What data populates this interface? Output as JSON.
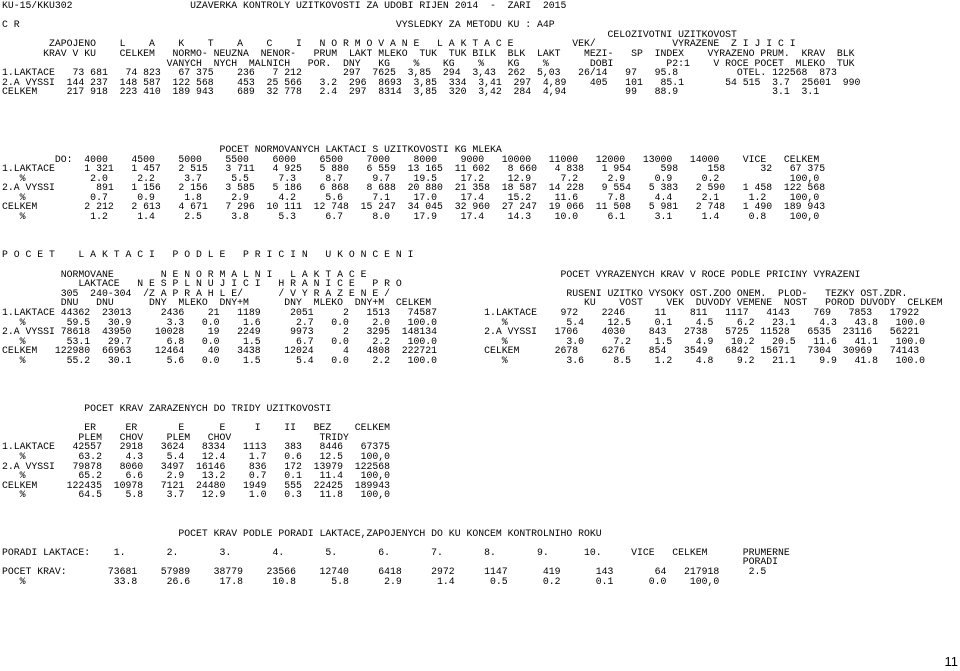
{
  "report": {
    "lines": [
      "KU-15/KKU302                    UZAVERKA KONTROLY UZITKOVOSTI ZA UDOBI RIJEN 2014  -  ZARI  2015",
      "",
      "C R                                                                VYSLEDKY ZA METODU KU : A4P",
      "                                                                                                       CELOZIVOTNI UZITKOVOST",
      "        ZAPOJENO    L    A    K    T    A    C    I   N O R M O V A N E   L A K T A C E          VEK/             VYRAZENE  Z I J I C I",
      "       KRAV V KU    CELKEM   NORMO- NEUZNA  NENOR-   PRUM  LAKT MLEKO  TUK  TUK BILK  BLK  LAKT    MEZI-   SP  INDEX    VYRAZENO PRUM.  KRAV  BLK",
      "                            VANYCH  NYCH  MALNICH   POR.  DNY   KG    %    KG    %    KG    %       DOBI         P2:1    V ROCE POCET  MLEKO  TUK",
      "1.LAKTACE   73 681   74 823   67 375    236   7 212       297  7625  3,85  294  3,43  262  5,03   26/14   97   95.8          OTEL. 122568  873",
      "2.A VYSSI  144 237  148 587  122 568    453  25 566   3.2  296  8693  3,85  334  3,41  297  4,89    405   101   85.1       54 515  3.7  25601  990",
      "CELKEM     217 918  223 410  189 943    689  32 778   2.4  297  8314  3,85  320  3,42  284  4,94          99   88.9                3.1  3.1",
      "",
      "",
      "",
      "",
      "",
      "                                     POCET NORMOVANYCH LAKTACI S UZITKOVOSTI KG MLEKA",
      "         DO:  4000    4500    5000    5500    6000    6500    7000    8000    9000   10000   11000   12000   13000   14000    VICE   CELKEM",
      "1.LAKTACE     1 321   1 457   2 515   3 711   4 925   5 880   6 559  13 165  11 602   8 660   4 838   1 954     598     158      32   67 375",
      "   %           2.0     2.2     3.7     5.5     7.3     8.7     9.7    19.5    17.2    12.9     7.2     2.9     0.9     0.2            100,0",
      "2.A VYSSI       891   1 156   2 156   3 585   5 186   6 868   8 688  20 880  21 358  18 587  14 228   9 554   5 383   2 590   1 458  122 568",
      "   %           0.7     0.9     1.8     2.9     4.2     5.6     7.1    17.0    17.4    15.2    11.6     7.8     4.4     2.1     1.2    100,0",
      "CELKEM        2 212   2 613   4 671   7 296  10 111  12 748  15 247  34 045  32 960  27 247  19 066  11 508   5 981   2 748   1 490  189 943",
      "   %           1.2     1.4     2.5     3.8     5.3     6.7     8.0    17.9    17.4    14.3    10.0     6.1     3.1     1.4     0.8    100,0",
      "",
      "",
      "",
      "P O C E T    L A K T A C I   P O D L E   P R I C I N   U K O N C E N I",
      "",
      "          NORMOVANE        N E N O R M A L N I   L A K T A C E                                 POCET VYRAZENYCH KRAV V ROCE PODLE PRICINY VYRAZENI",
      "             LAKTACE   N E S P L N U J I C I   H R A N I C E   P R O",
      "          305  240-304  /Z A P R A H L E/      / V Y R A Z E N E /                              RUSENI UZITKO VYSOKY OST.ZOO ONEM.  PLOD-   TEZKY OST.ZDR.",
      "          DNU   DNU      DNY  MLEKO  DNY+M      DNY  MLEKO  DNY+M  CELKEM                          KU    VOST    VEK  DUVODY VEMENE  NOST   POROD DUVODY  CELKEM",
      "1.LAKTACE 44362  23013     2436    21   1189     2051     2   1513   74587        1.LAKTACE    972    2246     11    811   1117   4143    769   7853   17922",
      "   %       59.5   30.9      3.3   0.0    1.6      2.7   0.0    2.0   100.0           %          5.4    12.5    0.1    4.5    6.2   23.1    4.3   43.8   100.0",
      "2.A VYSSI 78618  43950    10028    19   2249     9973     2   3295  148134        2.A VYSSI   1706    4030    843   2738   5725  11528   6535  23116   56221",
      "   %       53.1   29.7      6.8   0.0    1.5      6.7   0.0    2.2   100.0           %          3.0     7.2    1.5    4.9   10.2   20.5   11.6   41.1   100.0",
      "CELKEM   122980  66963    12464    40   3438    12024     4   4808  222721        CELKEM      2678    6276    854   3549   6842  15671   7304  30969   74143",
      "   %       55.2   30.1      5.6   0.0    1.5      5.4   0.0    2.2   100.0           %          3.6     8.5    1.2    4.8    9.2   21.1    9.9   41.8   100.0",
      "",
      "",
      "",
      "",
      "              POCET KRAV ZARAZENYCH DO TRIDY UZITKOVOSTI",
      "",
      "              ER     ER       E      E     I    II   BEZ    CELKEM",
      "             PLEM   CHOV    PLEM   CHOV               TRIDY",
      "1.LAKTACE   42557   2918   3624   8334   1113   383   8446   67375",
      "   %         63.2    4.3    5.4   12.4    1.7   0.6   12.5   100,0",
      "2.A VYSSI   79878   8060   3497  16146    836   172  13979  122568",
      "   %         65.2    6.6    2.9   13.2    0.7   0.1   11.4   100,0",
      "CELKEM     122435  10978   7121  24480   1949   555  22425  189943",
      "   %         64.5    5.8    3.7   12.9    1.0   0.3   11.8   100,0",
      "",
      "",
      "",
      "                              POCET KRAV PODLE PORADI LAKTACE,ZAPOJENYCH DO KU KONCEM KONTROLNIHO ROKU",
      "",
      "PORADI LAKTACE:    1.       2.       3.       4.       5.       6.       7.       8.       9.      10.     VICE   CELKEM      PRUMERNE",
      "                                                                                                                              PORADI",
      "POCET KRAV:       73681    57989    38779    23566    12740     6418     2972     1147      419      143       64   217918     2.5",
      "   %               33.8     26.6     17.8     10.8      5.8      2.9      1.4      0.5      0.2      0.1      0.0    100,0"
    ]
  },
  "page_number": "11"
}
